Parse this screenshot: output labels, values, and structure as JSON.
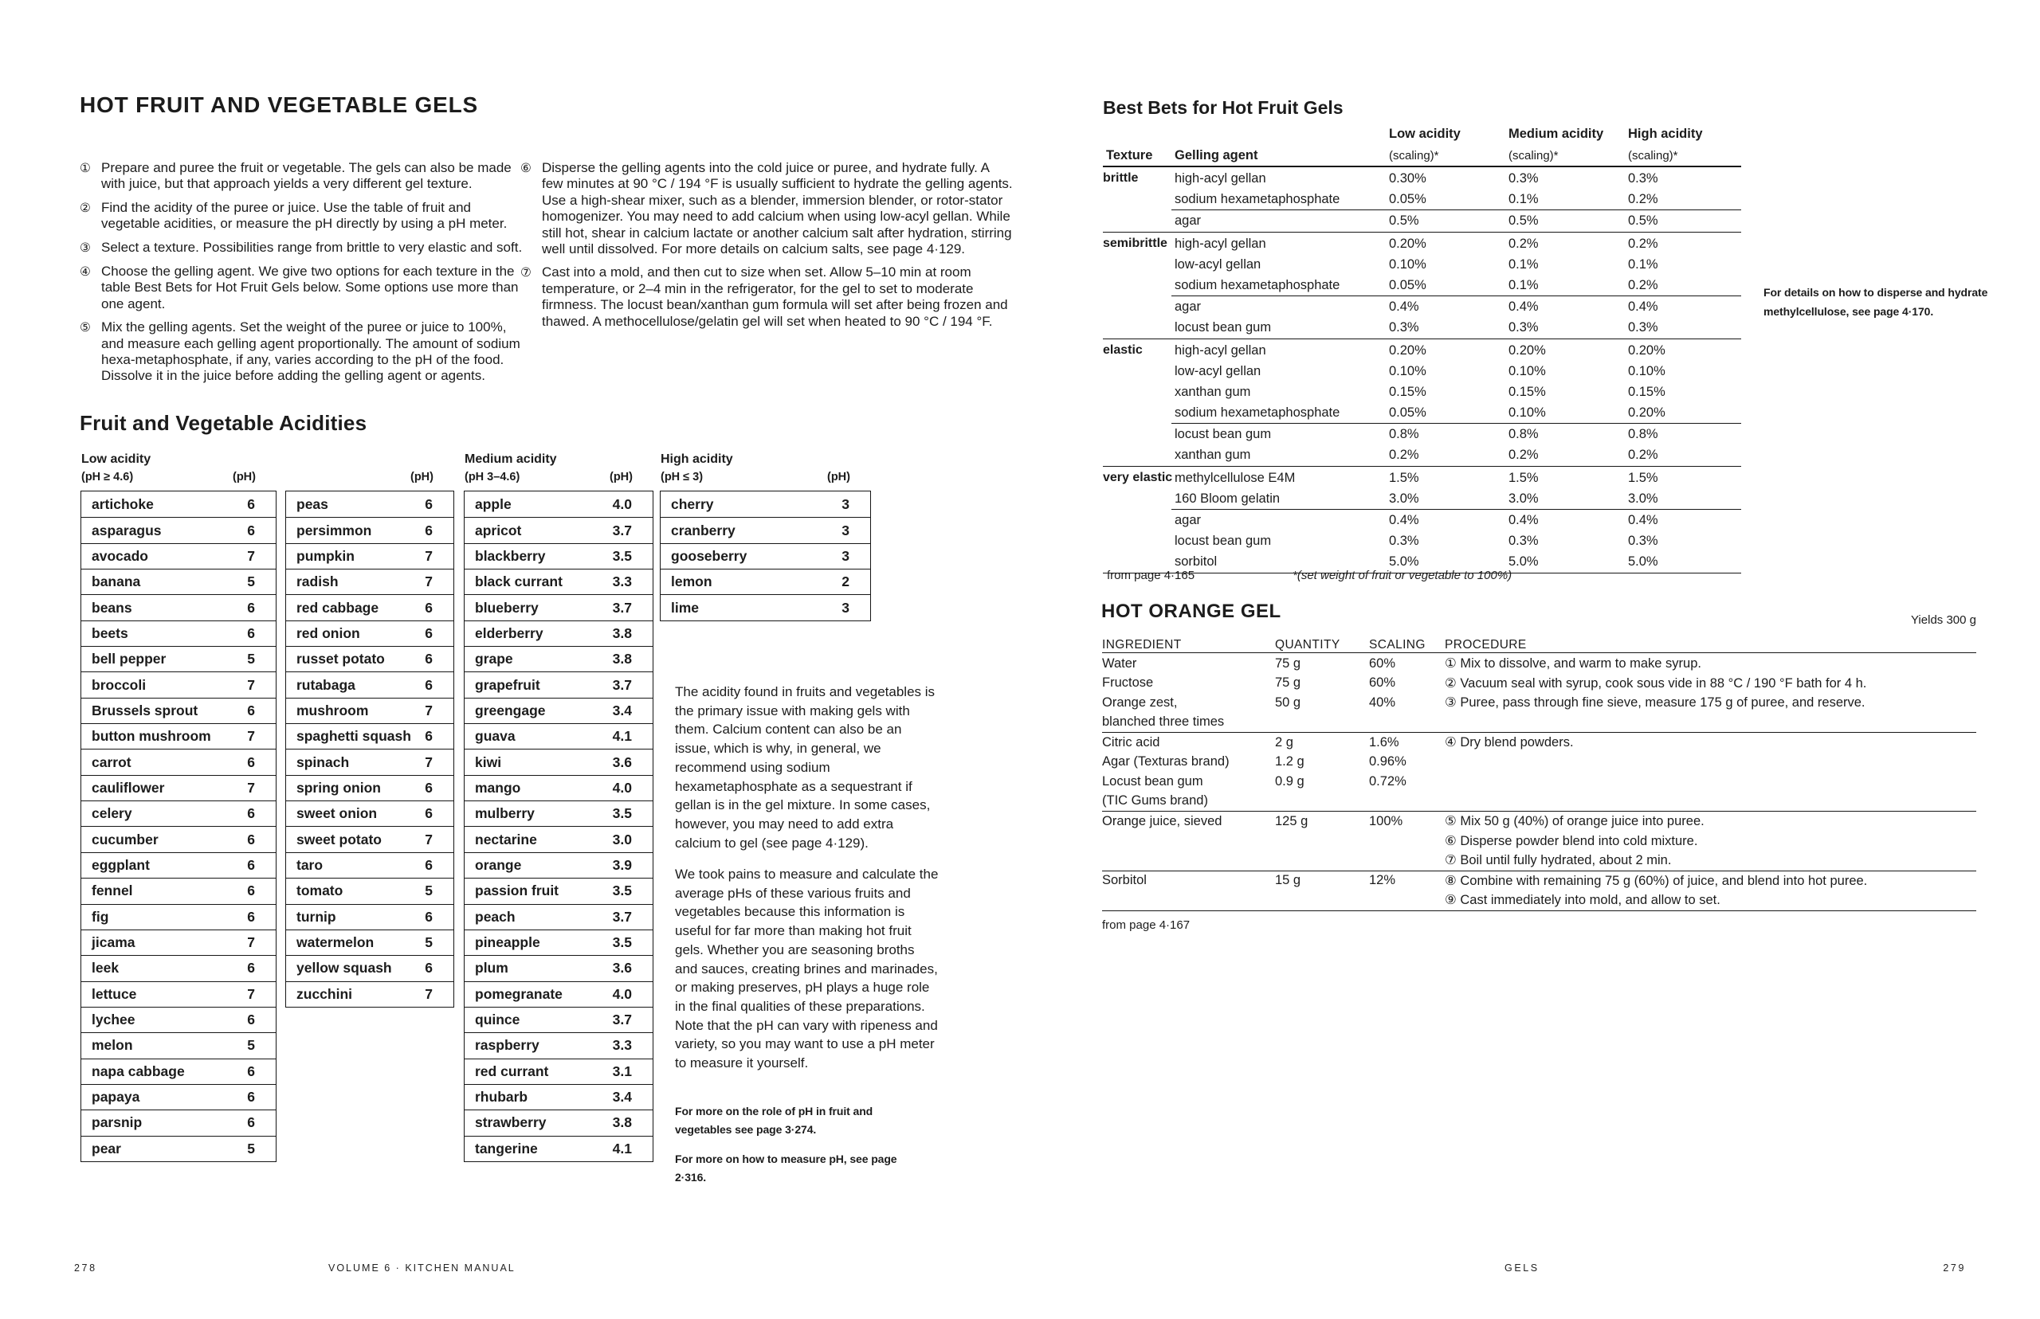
{
  "colors": {
    "ink": "#1c1c1c",
    "paper": "#ffffff",
    "rule": "#161616"
  },
  "left_page": {
    "title": "HOT FRUIT AND VEGETABLE GELS",
    "steps_col1": [
      {
        "marker": "①",
        "text": "Prepare and puree the fruit or vegetable. The gels can also be made with juice, but that approach yields a very different gel texture."
      },
      {
        "marker": "②",
        "text": "Find the acidity of the puree or juice. Use the table of fruit and vegetable acidities, or measure the pH directly by using a pH meter."
      },
      {
        "marker": "③",
        "text": "Select a texture. Possibilities range from brittle to very elastic and soft."
      },
      {
        "marker": "④",
        "text": "Choose the gelling agent. We give two options for each texture in the table Best Bets for Hot Fruit Gels below. Some options use more than one agent."
      },
      {
        "marker": "⑤",
        "text": "Mix the gelling agents. Set the weight of the puree or juice to 100%, and measure each gelling agent proportionally. The amount of sodium hexa-metaphosphate, if any, varies according to the pH of the food. Dissolve it in the juice before adding the gelling agent or agents."
      }
    ],
    "steps_col2": [
      {
        "marker": "⑥",
        "text": "Disperse the gelling agents into the cold juice or puree, and hydrate fully. A few minutes at 90 °C / 194 °F is usually sufficient to hydrate the gelling agents. Use a high-shear mixer, such as a blender, immersion blender, or rotor-stator homogenizer. You may need to add calcium when using low-acyl gellan. While still hot, shear in calcium lactate or another calcium salt after hydration, stirring well until dissolved. For more details on calcium salts, see page 4·129."
      },
      {
        "marker": "⑦",
        "text": "Cast into a mold, and then cut to size when set. Allow 5–10 min at room temperature, or 2–4 min in the refrigerator, for the gel to set to moderate firmness. The locust bean/xanthan gum formula will set after being frozen and thawed. A methocellulose/gelatin gel will set when heated to 90 °C / 194 °F."
      }
    ],
    "acidities": {
      "heading": "Fruit and Vegetable Acidities",
      "columns": [
        {
          "title": "Low acidity",
          "range": "(pH ≥ 4.6)",
          "ph": "(pH)",
          "items": [
            [
              "artichoke",
              "6"
            ],
            [
              "asparagus",
              "6"
            ],
            [
              "avocado",
              "7"
            ],
            [
              "banana",
              "5"
            ],
            [
              "beans",
              "6"
            ],
            [
              "beets",
              "6"
            ],
            [
              "bell pepper",
              "5"
            ],
            [
              "broccoli",
              "7"
            ],
            [
              "Brussels sprout",
              "6"
            ],
            [
              "button mushroom",
              "7"
            ],
            [
              "carrot",
              "6"
            ],
            [
              "cauliflower",
              "7"
            ],
            [
              "celery",
              "6"
            ],
            [
              "cucumber",
              "6"
            ],
            [
              "eggplant",
              "6"
            ],
            [
              "fennel",
              "6"
            ],
            [
              "fig",
              "6"
            ],
            [
              "jicama",
              "7"
            ],
            [
              "leek",
              "6"
            ],
            [
              "lettuce",
              "7"
            ],
            [
              "lychee",
              "6"
            ],
            [
              "melon",
              "5"
            ],
            [
              "napa cabbage",
              "6"
            ],
            [
              "papaya",
              "6"
            ],
            [
              "parsnip",
              "6"
            ],
            [
              "pear",
              "5"
            ]
          ]
        },
        {
          "title": "",
          "range": "",
          "ph": "(pH)",
          "items": [
            [
              "peas",
              "6"
            ],
            [
              "persimmon",
              "6"
            ],
            [
              "pumpkin",
              "7"
            ],
            [
              "radish",
              "7"
            ],
            [
              "red cabbage",
              "6"
            ],
            [
              "red onion",
              "6"
            ],
            [
              "russet potato",
              "6"
            ],
            [
              "rutabaga",
              "6"
            ],
            [
              "mushroom",
              "7"
            ],
            [
              "spaghetti squash",
              "6"
            ],
            [
              "spinach",
              "7"
            ],
            [
              "spring onion",
              "6"
            ],
            [
              "sweet onion",
              "6"
            ],
            [
              "sweet potato",
              "7"
            ],
            [
              "taro",
              "6"
            ],
            [
              "tomato",
              "5"
            ],
            [
              "turnip",
              "6"
            ],
            [
              "watermelon",
              "5"
            ],
            [
              "yellow squash",
              "6"
            ],
            [
              "zucchini",
              "7"
            ]
          ]
        },
        {
          "title": "Medium acidity",
          "range": "(pH 3–4.6)",
          "ph": "(pH)",
          "items": [
            [
              "apple",
              "4.0"
            ],
            [
              "apricot",
              "3.7"
            ],
            [
              "blackberry",
              "3.5"
            ],
            [
              "black currant",
              "3.3"
            ],
            [
              "blueberry",
              "3.7"
            ],
            [
              "elderberry",
              "3.8"
            ],
            [
              "grape",
              "3.8"
            ],
            [
              "grapefruit",
              "3.7"
            ],
            [
              "greengage",
              "3.4"
            ],
            [
              "guava",
              "4.1"
            ],
            [
              "kiwi",
              "3.6"
            ],
            [
              "mango",
              "4.0"
            ],
            [
              "mulberry",
              "3.5"
            ],
            [
              "nectarine",
              "3.0"
            ],
            [
              "orange",
              "3.9"
            ],
            [
              "passion fruit",
              "3.5"
            ],
            [
              "peach",
              "3.7"
            ],
            [
              "pineapple",
              "3.5"
            ],
            [
              "plum",
              "3.6"
            ],
            [
              "pomegranate",
              "4.0"
            ],
            [
              "quince",
              "3.7"
            ],
            [
              "raspberry",
              "3.3"
            ],
            [
              "red currant",
              "3.1"
            ],
            [
              "rhubarb",
              "3.4"
            ],
            [
              "strawberry",
              "3.8"
            ],
            [
              "tangerine",
              "4.1"
            ]
          ]
        },
        {
          "title": "High acidity",
          "range": "(pH ≤ 3)",
          "ph": "(pH)",
          "items": [
            [
              "cherry",
              "3"
            ],
            [
              "cranberry",
              "3"
            ],
            [
              "gooseberry",
              "3"
            ],
            [
              "lemon",
              "2"
            ],
            [
              "lime",
              "3"
            ]
          ]
        }
      ]
    },
    "sidebar": {
      "paragraphs": [
        "The acidity found in fruits and vegetables is the primary issue with making gels with them. Calcium content can also be an issue, which is why, in general, we recommend using sodium hexametaphosphate as a sequestrant if gellan is in the gel mixture. In some cases, however, you may need to add extra calcium to gel (see page 4·129).",
        "We took pains to measure and calculate the average pHs of these various fruits and vegetables because this information is useful for far more than making hot fruit gels. Whether you are seasoning broths and sauces, creating brines and marinades, or making preserves, pH plays a huge role in the final qualities of these preparations. Note that the pH can vary with ripeness and variety, so you may want to use a pH meter to measure it yourself."
      ],
      "notes": [
        "For more on the role of pH in fruit and vegetables see page 3·274.",
        "For more on how to measure pH, see page 2·316."
      ]
    },
    "footer": {
      "page_number": "278",
      "label": "VOLUME 6 · KITCHEN MANUAL"
    }
  },
  "right_page": {
    "best_bets": {
      "title": "Best Bets for Hot Fruit Gels",
      "headers": {
        "texture": "Texture",
        "agent": "Gelling agent",
        "acidities": [
          "Low acidity",
          "Medium acidity",
          "High acidity"
        ],
        "scaling": "(scaling)*"
      },
      "groups": [
        {
          "texture": "brittle",
          "rows": [
            {
              "agent": "high-acyl gellan",
              "low": "0.30%",
              "med": "0.3%",
              "high": "0.3%"
            },
            {
              "agent": "sodium hexametaphosphate",
              "low": "0.05%",
              "med": "0.1%",
              "high": "0.2%"
            },
            {
              "agent": "agar",
              "low": "0.5%",
              "med": "0.5%",
              "high": "0.5%",
              "rule_before": true
            }
          ]
        },
        {
          "texture": "semibrittle",
          "rows": [
            {
              "agent": "high-acyl gellan",
              "low": "0.20%",
              "med": "0.2%",
              "high": "0.2%"
            },
            {
              "agent": "low-acyl gellan",
              "low": "0.10%",
              "med": "0.1%",
              "high": "0.1%"
            },
            {
              "agent": "sodium hexametaphosphate",
              "low": "0.05%",
              "med": "0.1%",
              "high": "0.2%"
            },
            {
              "agent": "agar",
              "low": "0.4%",
              "med": "0.4%",
              "high": "0.4%",
              "rule_before": true
            },
            {
              "agent": "locust bean gum",
              "low": "0.3%",
              "med": "0.3%",
              "high": "0.3%"
            }
          ]
        },
        {
          "texture": "elastic",
          "rows": [
            {
              "agent": "high-acyl gellan",
              "low": "0.20%",
              "med": "0.20%",
              "high": "0.20%"
            },
            {
              "agent": "low-acyl gellan",
              "low": "0.10%",
              "med": "0.10%",
              "high": "0.10%"
            },
            {
              "agent": "xanthan gum",
              "low": "0.15%",
              "med": "0.15%",
              "high": "0.15%"
            },
            {
              "agent": "sodium hexametaphosphate",
              "low": "0.05%",
              "med": "0.10%",
              "high": "0.20%"
            },
            {
              "agent": "locust bean gum",
              "low": "0.8%",
              "med": "0.8%",
              "high": "0.8%",
              "rule_before": true
            },
            {
              "agent": "xanthan gum",
              "low": "0.2%",
              "med": "0.2%",
              "high": "0.2%"
            }
          ]
        },
        {
          "texture": "very elastic",
          "rows": [
            {
              "agent": "methylcellulose E4M",
              "low": "1.5%",
              "med": "1.5%",
              "high": "1.5%"
            },
            {
              "agent": "160 Bloom gelatin",
              "low": "3.0%",
              "med": "3.0%",
              "high": "3.0%"
            },
            {
              "agent": "agar",
              "low": "0.4%",
              "med": "0.4%",
              "high": "0.4%",
              "rule_before": true
            },
            {
              "agent": "locust bean gum",
              "low": "0.3%",
              "med": "0.3%",
              "high": "0.3%"
            },
            {
              "agent": "sorbitol",
              "low": "5.0%",
              "med": "5.0%",
              "high": "5.0%"
            }
          ]
        }
      ],
      "from_page": "from page 4·165",
      "footnote": "*(set weight of fruit or vegetable to 100%)"
    },
    "side_note": "For details on how to disperse and hydrate methylcellulose, see page 4·170.",
    "recipe": {
      "title": "HOT ORANGE GEL",
      "yield": "Yields 300 g",
      "headers": [
        "INGREDIENT",
        "QUANTITY",
        "SCALING",
        "PROCEDURE"
      ],
      "groups": [
        {
          "lines": [
            {
              "ing": "Water",
              "qty": "75 g",
              "sc": "60%",
              "step": "① Mix to dissolve, and warm to make syrup."
            },
            {
              "ing": "Fructose",
              "qty": "75 g",
              "sc": "60%",
              "step": "② Vacuum seal with syrup, cook sous vide in 88 °C / 190 °F bath for 4 h."
            },
            {
              "ing": "Orange zest,",
              "qty": "50 g",
              "sc": "40%",
              "step": "③ Puree, pass through fine sieve, measure 175 g of puree, and reserve."
            },
            {
              "ing": "blanched three times",
              "qty": "",
              "sc": "",
              "step": ""
            }
          ]
        },
        {
          "lines": [
            {
              "ing": "Citric acid",
              "qty": "2 g",
              "sc": "1.6%",
              "step": "④ Dry blend powders."
            },
            {
              "ing": "Agar (Texturas brand)",
              "qty": "1.2 g",
              "sc": "0.96%",
              "step": ""
            },
            {
              "ing": "Locust bean gum",
              "qty": "0.9 g",
              "sc": "0.72%",
              "step": ""
            },
            {
              "ing": "(TIC Gums brand)",
              "qty": "",
              "sc": "",
              "step": ""
            }
          ]
        },
        {
          "lines": [
            {
              "ing": "Orange juice, sieved",
              "qty": "125 g",
              "sc": "100%",
              "step": "⑤ Mix 50 g (40%) of orange juice into puree."
            },
            {
              "ing": "",
              "qty": "",
              "sc": "",
              "step": "⑥ Disperse powder blend into cold mixture."
            },
            {
              "ing": "",
              "qty": "",
              "sc": "",
              "step": "⑦ Boil until fully hydrated, about 2 min."
            }
          ]
        },
        {
          "lines": [
            {
              "ing": "Sorbitol",
              "qty": "15 g",
              "sc": "12%",
              "step": "⑧ Combine with remaining 75 g (60%) of juice, and blend into hot puree."
            },
            {
              "ing": "",
              "qty": "",
              "sc": "",
              "step": "⑨ Cast immediately into mold, and allow to set."
            }
          ]
        }
      ],
      "from_page": "from page 4·167"
    },
    "footer": {
      "label": "GELS",
      "page_number": "279"
    }
  }
}
